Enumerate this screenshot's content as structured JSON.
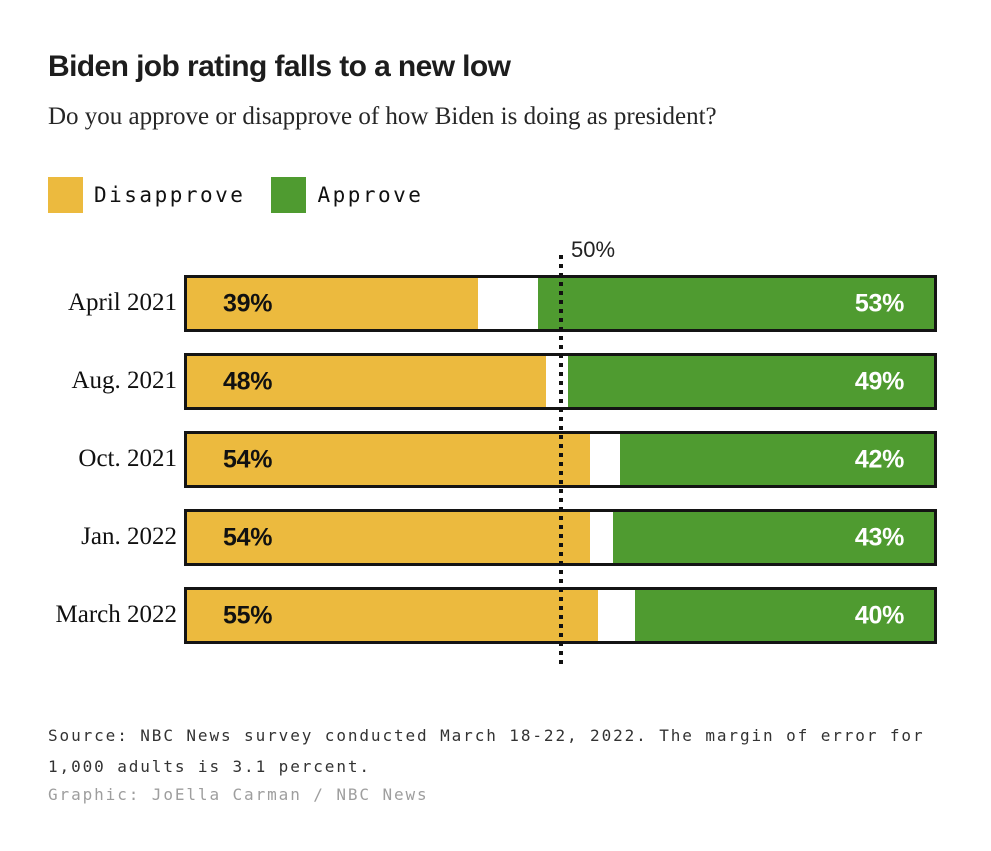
{
  "header": {
    "title": "Biden job rating falls to a new low",
    "subtitle": "Do you approve or disapprove of how Biden is doing as president?"
  },
  "colors": {
    "disapprove": "#ecba3e",
    "approve": "#4f9b30",
    "bar_border": "#141414",
    "reference_line": "#111111"
  },
  "chart_data": {
    "type": "bar",
    "orientation": "horizontal",
    "categories": [
      "April 2021",
      "Aug. 2021",
      "Oct. 2021",
      "Jan. 2022",
      "March 2022"
    ],
    "series": [
      {
        "name": "Disapprove",
        "color": "#ecba3e",
        "align": "left",
        "values": [
          39,
          48,
          54,
          54,
          55
        ]
      },
      {
        "name": "Approve",
        "color": "#4f9b30",
        "align": "right",
        "values": [
          53,
          49,
          42,
          43,
          40
        ]
      }
    ],
    "xlim": [
      0,
      100
    ],
    "reference_line": {
      "value": 50,
      "label": "50%"
    },
    "grid": false,
    "legend_position": "top-left",
    "value_labels": "inside-ends"
  },
  "footer": {
    "source_line1": "Source: NBC News survey conducted March 18-22, 2022. The margin of error for",
    "source_line2": "1,000 adults is 3.1 percent.",
    "credit": "Graphic: JoElla Carman / NBC News"
  }
}
